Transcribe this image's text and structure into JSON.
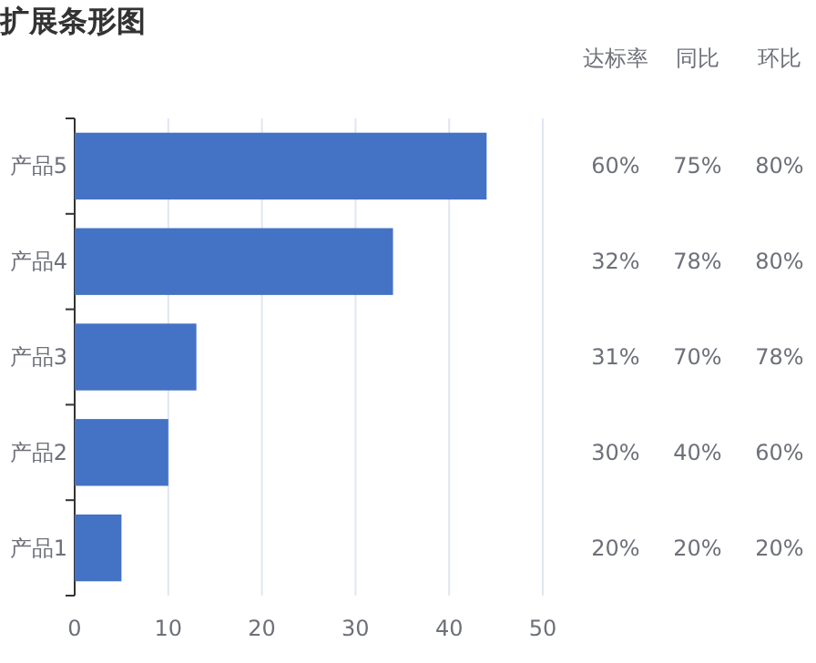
{
  "chart_data": [
    {
      "type": "bar",
      "title": "扩展条形图",
      "orientation": "horizontal",
      "categories": [
        "产品5",
        "产品4",
        "产品3",
        "产品2",
        "产品1"
      ],
      "values": [
        44,
        34,
        13,
        10,
        5
      ],
      "color": "#4472c4",
      "xlim": [
        0,
        50
      ],
      "xticks": [
        0,
        10,
        20,
        30,
        40,
        50
      ],
      "grid": "x"
    },
    {
      "type": "other",
      "categories": [
        "达标率",
        "同比",
        "环比"
      ],
      "annotations": [
        "60%",
        "75%",
        "80%",
        "32%",
        "78%",
        "80%",
        "31%",
        "70%",
        "78%",
        "30%",
        "40%",
        "60%",
        "20%",
        "20%",
        "20%"
      ]
    }
  ]
}
